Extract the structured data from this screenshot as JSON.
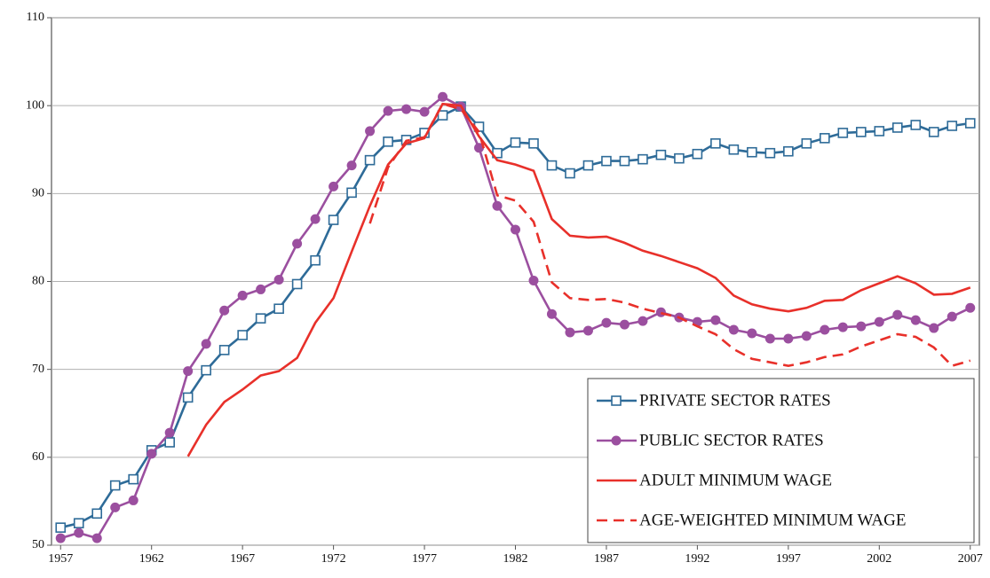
{
  "chart_data": {
    "type": "line",
    "x": [
      1957,
      1958,
      1959,
      1960,
      1961,
      1962,
      1963,
      1964,
      1965,
      1966,
      1967,
      1968,
      1969,
      1970,
      1971,
      1972,
      1973,
      1974,
      1975,
      1976,
      1977,
      1978,
      1979,
      1980,
      1981,
      1982,
      1983,
      1984,
      1985,
      1986,
      1987,
      1988,
      1989,
      1990,
      1991,
      1992,
      1993,
      1994,
      1995,
      1996,
      1997,
      1998,
      1999,
      2000,
      2001,
      2002,
      2003,
      2004,
      2005,
      2006,
      2007
    ],
    "series": [
      {
        "name": "PRIVATE SECTOR RATES",
        "color": "#2e6b98",
        "marker": "square",
        "style": "solid",
        "values": [
          52,
          52.5,
          53.6,
          56.8,
          57.5,
          60.8,
          61.7,
          66.8,
          69.9,
          72.2,
          73.9,
          75.8,
          76.9,
          79.7,
          82.4,
          87,
          90.1,
          93.8,
          95.9,
          96.1,
          96.9,
          98.9,
          99.9,
          97.6,
          94.6,
          95.8,
          95.7,
          93.2,
          92.3,
          93.2,
          93.7,
          93.7,
          93.9,
          94.4,
          94,
          94.5,
          95.7,
          95,
          94.7,
          94.6,
          94.8,
          95.7,
          96.3,
          96.9,
          97,
          97.1,
          97.5,
          97.8,
          97,
          97.7,
          98
        ]
      },
      {
        "name": "PUBLIC SECTOR RATES",
        "color": "#9b4f9f",
        "marker": "circle",
        "style": "solid",
        "values": [
          50.8,
          51.4,
          50.8,
          54.3,
          55.1,
          60.4,
          62.8,
          69.8,
          72.9,
          76.7,
          78.4,
          79.1,
          80.2,
          84.3,
          87.1,
          90.8,
          93.2,
          97.1,
          99.4,
          99.6,
          99.3,
          101,
          99.9,
          95.2,
          88.6,
          85.9,
          80.1,
          76.3,
          74.2,
          74.4,
          75.3,
          75.1,
          75.5,
          76.5,
          75.9,
          75.4,
          75.6,
          74.5,
          74.1,
          73.5,
          73.5,
          73.8,
          74.5,
          74.8,
          74.9,
          75.4,
          76.2,
          75.6,
          74.7,
          76,
          77
        ]
      },
      {
        "name": "ADULT MINIMUM WAGE",
        "color": "#e8302a",
        "marker": "none",
        "style": "solid",
        "values": [
          null,
          null,
          null,
          null,
          null,
          null,
          null,
          60.1,
          63.7,
          66.3,
          67.7,
          69.3,
          69.8,
          71.3,
          75.3,
          78.1,
          83.4,
          88.6,
          93.3,
          95.7,
          96.3,
          100.2,
          100,
          96.5,
          93.8,
          93.3,
          92.6,
          87.1,
          85.2,
          85,
          85.1,
          84.4,
          83.5,
          82.9,
          82.2,
          81.5,
          80.4,
          78.4,
          77.4,
          76.9,
          76.6,
          77,
          77.8,
          77.9,
          79,
          79.8,
          80.6,
          79.8,
          78.5,
          78.6,
          79.3
        ]
      },
      {
        "name": "AGE-WEIGHTED MINIMUM WAGE",
        "color": "#e8302a",
        "marker": "none",
        "style": "dashed",
        "values": [
          null,
          null,
          null,
          null,
          null,
          null,
          null,
          null,
          null,
          null,
          null,
          null,
          null,
          null,
          null,
          null,
          null,
          86.6,
          93,
          96,
          96.4,
          100.2,
          99.6,
          97,
          89.8,
          89.2,
          86.8,
          79.9,
          78.1,
          77.9,
          78,
          77.6,
          76.9,
          76.4,
          75.9,
          74.9,
          74,
          72.3,
          71.2,
          70.8,
          70.4,
          70.8,
          71.4,
          71.7,
          72.6,
          73.3,
          74,
          73.7,
          72.5,
          70.4,
          71
        ]
      }
    ],
    "xlim": [
      1956.5,
      2007.5
    ],
    "xticks": [
      1957,
      1962,
      1967,
      1972,
      1977,
      1982,
      1987,
      1992,
      1997,
      2002,
      2007
    ],
    "ylim": [
      50,
      110
    ],
    "yticks": [
      50,
      60,
      70,
      80,
      90,
      100,
      110
    ],
    "grid": true,
    "legend": "lower right"
  }
}
